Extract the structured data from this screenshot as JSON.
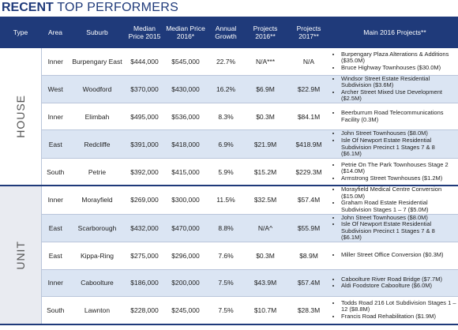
{
  "title": {
    "bold": "RECENT",
    "rest": "TOP PERFORMERS"
  },
  "table": {
    "columns": [
      "Type",
      "Area",
      "Suburb",
      "Median Price 2015",
      "Median Price 2016*",
      "Annual Growth",
      "Projects 2016**",
      "Projects 2017**",
      "Main 2016 Projects**"
    ],
    "groups": [
      {
        "type": "HOUSE",
        "rows": [
          [
            "Inner",
            "Burpengary East",
            "$444,000",
            "$545,000",
            "22.7%",
            "N/A***",
            "N/A",
            [
              "Burpengary Plaza Alterations & Additions ($35.0M)",
              "Bruce Highway Townhouses ($30.0M)"
            ]
          ],
          [
            "West",
            "Woodford",
            "$370,000",
            "$430,000",
            "16.2%",
            "$6.9M",
            "$22.9M",
            [
              "Windsor Street Estate Residential Subdivision ($3.6M)",
              "Archer Street Mixed Use Development ($2.5M)"
            ]
          ],
          [
            "Inner",
            "Elimbah",
            "$495,000",
            "$536,000",
            "8.3%",
            "$0.3M",
            "$84.1M",
            [
              "Beerburrum Road Telecommunications Facility (0.3M)"
            ]
          ],
          [
            "East",
            "Redcliffe",
            "$391,000",
            "$418,000",
            "6.9%",
            "$21.9M",
            "$418.9M",
            [
              "John Street Townhouses ($8.0M)",
              "Isle Of Newport Estate Residential Subdivision Precinct 1 Stages 7 & 8 ($6.1M)"
            ]
          ],
          [
            "South",
            "Petrie",
            "$392,000",
            "$415,000",
            "5.9%",
            "$15.2M",
            "$229.3M",
            [
              "Petrie On The Park Townhouses Stage 2 ($14.0M)",
              "Armstrong Street Townhouses ($1.2M)"
            ]
          ]
        ]
      },
      {
        "type": "UNIT",
        "rows": [
          [
            "Inner",
            "Morayfield",
            "$269,000",
            "$300,000",
            "11.5%",
            "$32.5M",
            "$57.4M",
            [
              "Morayfield Medical Centre Conversion ($15.0M)",
              "Graham Road Estate Residential Subdivision Stages 1 – 7 ($5.0M)"
            ]
          ],
          [
            "East",
            "Scarborough",
            "$432,000",
            "$470,000",
            "8.8%",
            "N/A^",
            "$55.9M",
            [
              "John Street Townhouses ($8.0M)",
              "Isle Of Newport Estate Residential Subdivision Precinct 1 Stages 7 & 8 ($6.1M)"
            ]
          ],
          [
            "East",
            "Kippa-Ring",
            "$275,000",
            "$296,000",
            "7.6%",
            "$0.3M",
            "$8.9M",
            [
              "Miller Street Office Conversion ($0.3M)"
            ]
          ],
          [
            "Inner",
            "Caboolture",
            "$186,000",
            "$200,000",
            "7.5%",
            "$43.9M",
            "$57.4M",
            [
              "Caboolture River Road Bridge ($7.7M)",
              "Aldi Foodstore Caboolture ($6.0M)"
            ]
          ],
          [
            "South",
            "Lawnton",
            "$228,000",
            "$245,000",
            "7.5%",
            "$10.7M",
            "$28.3M",
            [
              "Todds Road 216 Lot Subdivision Stages 1 – 12 ($8.8M)",
              "Francis Road Rehabilitation ($1.9M)"
            ]
          ]
        ]
      }
    ]
  }
}
